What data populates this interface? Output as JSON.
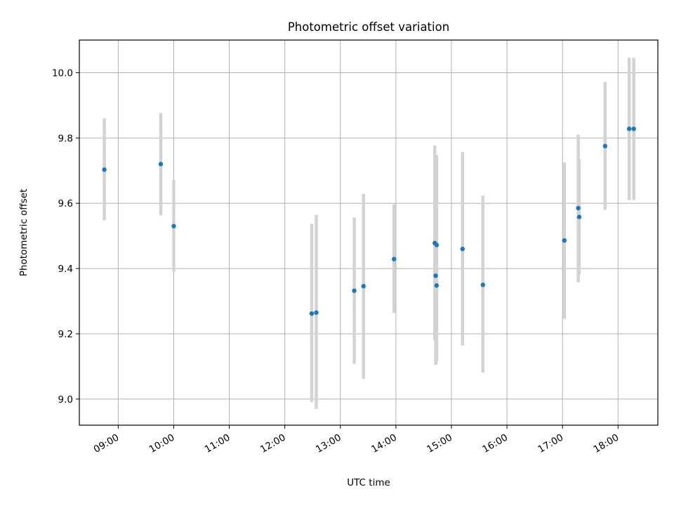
{
  "chart_data": {
    "type": "scatter",
    "title": "Photometric offset variation",
    "xlabel": "UTC time",
    "ylabel": "Photometric offset",
    "x_ticks": [
      "09:00",
      "10:00",
      "11:00",
      "12:00",
      "13:00",
      "14:00",
      "15:00",
      "16:00",
      "17:00",
      "18:00"
    ],
    "y_ticks": [
      "9.0",
      "9.2",
      "9.4",
      "9.6",
      "9.8",
      "10.0"
    ],
    "xlim": [
      "08:18",
      "18:43"
    ],
    "ylim": [
      8.92,
      10.1
    ],
    "grid": true,
    "point_color": "#1f77b4",
    "errorbar_color": "#d3d3d3",
    "points": [
      {
        "x": "08:45",
        "y": 9.703,
        "low": 9.548,
        "high": 9.86
      },
      {
        "x": "09:46",
        "y": 9.72,
        "low": 9.563,
        "high": 9.877
      },
      {
        "x": "10:00",
        "y": 9.53,
        "low": 9.39,
        "high": 9.671
      },
      {
        "x": "12:29",
        "y": 9.262,
        "low": 8.991,
        "high": 9.537
      },
      {
        "x": "12:34",
        "y": 9.265,
        "low": 8.97,
        "high": 9.564
      },
      {
        "x": "13:15",
        "y": 9.332,
        "low": 9.108,
        "high": 9.556
      },
      {
        "x": "13:25",
        "y": 9.346,
        "low": 9.062,
        "high": 9.629
      },
      {
        "x": "13:58",
        "y": 9.429,
        "low": 9.264,
        "high": 9.597
      },
      {
        "x": "14:42",
        "y": 9.478,
        "low": 9.18,
        "high": 9.777
      },
      {
        "x": "14:43",
        "y": 9.378,
        "low": 9.105,
        "high": 9.65
      },
      {
        "x": "14:44",
        "y": 9.472,
        "low": 9.2,
        "high": 9.748
      },
      {
        "x": "14:44",
        "y": 9.348,
        "low": 9.115,
        "high": 9.58
      },
      {
        "x": "15:12",
        "y": 9.46,
        "low": 9.164,
        "high": 9.757
      },
      {
        "x": "15:34",
        "y": 9.35,
        "low": 9.081,
        "high": 9.623
      },
      {
        "x": "17:02",
        "y": 9.486,
        "low": 9.246,
        "high": 9.725
      },
      {
        "x": "17:17",
        "y": 9.585,
        "low": 9.358,
        "high": 9.81
      },
      {
        "x": "17:18",
        "y": 9.558,
        "low": 9.382,
        "high": 9.735
      },
      {
        "x": "17:46",
        "y": 9.775,
        "low": 9.58,
        "high": 9.972
      },
      {
        "x": "18:12",
        "y": 9.828,
        "low": 9.61,
        "high": 10.046
      },
      {
        "x": "18:17",
        "y": 9.828,
        "low": 9.61,
        "high": 10.046
      }
    ]
  }
}
